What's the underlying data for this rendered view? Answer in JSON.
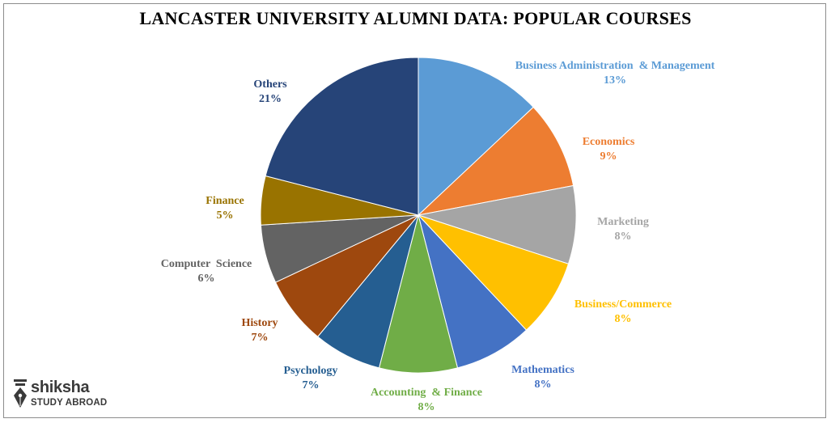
{
  "chart_data": {
    "type": "pie",
    "title": "LANCASTER UNIVERSITY ALUMNI DATA: POPULAR COURSES",
    "slices": [
      {
        "label": "Business Administration  & Management",
        "value": 13,
        "value_label": "13%",
        "color": "#5b9bd5"
      },
      {
        "label": "Economics",
        "value": 9,
        "value_label": "9%",
        "color": "#ed7d31"
      },
      {
        "label": "Marketing",
        "value": 8,
        "value_label": "8%",
        "color": "#a5a5a5"
      },
      {
        "label": "Business/Commerce",
        "value": 8,
        "value_label": "8%",
        "color": "#ffc000"
      },
      {
        "label": "Mathematics",
        "value": 8,
        "value_label": "8%",
        "color": "#4472c4"
      },
      {
        "label": "Accounting  & Finance",
        "value": 8,
        "value_label": "8%",
        "color": "#70ad47"
      },
      {
        "label": "Psychology",
        "value": 7,
        "value_label": "7%",
        "color": "#255e91"
      },
      {
        "label": "History",
        "value": 7,
        "value_label": "7%",
        "color": "#9e480e"
      },
      {
        "label": "Computer  Science",
        "value": 6,
        "value_label": "6%",
        "color": "#636363"
      },
      {
        "label": "Finance",
        "value": 5,
        "value_label": "5%",
        "color": "#997300"
      },
      {
        "label": "Others",
        "value": 21,
        "value_label": "21%",
        "color": "#264478"
      }
    ],
    "start_angle": "12 o'clock",
    "direction": "clockwise",
    "legend": "none (category labels beside slices)"
  },
  "logo": {
    "name": "shiksha",
    "tagline": "STUDY ABROAD",
    "icon": "pen-nib-icon",
    "color": "#3a3a3a"
  }
}
